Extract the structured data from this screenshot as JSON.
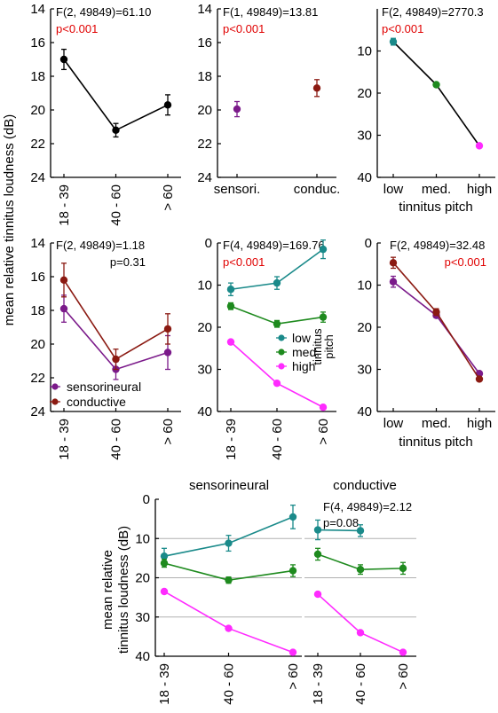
{
  "figure": {
    "ylabel_main": "mean relative tinnitus loudness (dB)",
    "ylabel_bottom_line1": "mean relative",
    "ylabel_bottom_line2": "tinnitus loudness (dB)",
    "pitch_xlabel": "tinnitus pitch",
    "colors": {
      "black": "#000000",
      "purple": "#7b1a8a",
      "darkred": "#8b1a12",
      "teal": "#1a8a8a",
      "green": "#1e8a1e",
      "magenta": "#ff2bff",
      "sig_red": "#e00000",
      "gridline": "#b0b0b0"
    }
  },
  "chart_data": [
    {
      "type": "line",
      "title": "",
      "stat": "F(2, 49849)=61.10",
      "pvalue": "p<0.001",
      "categories": [
        "18 - 39",
        "40 - 60",
        "> 60"
      ],
      "xlabel": "",
      "ylabel": "",
      "ylim": [
        14,
        24
      ],
      "yticks": [
        14,
        16,
        18,
        20,
        22,
        24
      ],
      "y_reversed": true,
      "series": [
        {
          "values": [
            17.0,
            21.2,
            19.7
          ],
          "err": [
            0.6,
            0.4,
            0.6
          ],
          "color": "#000000",
          "connect": true
        }
      ]
    },
    {
      "type": "scatter",
      "title": "",
      "stat": "F(1, 49849)=13.81",
      "pvalue": "p<0.001",
      "categories": [
        "sensori.",
        "conduc."
      ],
      "xlabel": "",
      "ylabel": "",
      "ylim": [
        14,
        24
      ],
      "yticks": [
        14,
        16,
        18,
        20,
        22,
        24
      ],
      "y_reversed": true,
      "series": [
        {
          "values": [
            19.95,
            null
          ],
          "err": [
            0.45,
            0
          ],
          "color": "#7b1a8a",
          "connect": false
        },
        {
          "values": [
            null,
            18.7
          ],
          "err": [
            0,
            0.5
          ],
          "color": "#8b1a12",
          "connect": false
        }
      ]
    },
    {
      "type": "line",
      "title": "",
      "stat": "F(2, 49849)=2770.3",
      "pvalue": "p<0.001",
      "categories": [
        "low",
        "med.",
        "high"
      ],
      "xlabel": "tinnitus pitch",
      "ylabel": "",
      "ylim": [
        0,
        40
      ],
      "yticks": [
        10,
        20,
        30,
        40
      ],
      "y_reversed": true,
      "segments": [
        {
          "from": 0,
          "to": 1,
          "color": "#000000"
        },
        {
          "from": 1,
          "to": 2,
          "color": "#000000"
        }
      ],
      "points": [
        {
          "x": 0,
          "y": 7.8,
          "err": 0.8,
          "color": "#1a8a8a"
        },
        {
          "x": 1,
          "y": 18.0,
          "err": 0.4,
          "color": "#1e8a1e"
        },
        {
          "x": 2,
          "y": 32.5,
          "err": 0.3,
          "color": "#ff2bff"
        }
      ]
    },
    {
      "type": "line",
      "title": "",
      "stat": "F(2, 49849)=1.18",
      "pvalue": "p=0.31",
      "categories": [
        "18 - 39",
        "40 - 60",
        "> 60"
      ],
      "xlabel": "",
      "ylabel": "",
      "ylim": [
        14,
        24
      ],
      "yticks": [
        14,
        16,
        18,
        20,
        22,
        24
      ],
      "y_reversed": true,
      "legend": "bottom-left",
      "series": [
        {
          "name": "sensorineural",
          "values": [
            17.9,
            21.5,
            20.5
          ],
          "err": [
            0.8,
            0.6,
            1.0
          ],
          "color": "#7b1a8a",
          "connect": true
        },
        {
          "name": "conductive",
          "values": [
            16.2,
            20.9,
            19.1
          ],
          "err": [
            1.0,
            0.6,
            0.9
          ],
          "color": "#8b1a12",
          "connect": true
        }
      ]
    },
    {
      "type": "line",
      "title": "",
      "stat": "F(4, 49849)=169.76",
      "pvalue": "p<0.001",
      "categories": [
        "18 - 39",
        "40 - 60",
        "> 60"
      ],
      "xlabel": "",
      "ylabel": "",
      "ylim": [
        0,
        40
      ],
      "yticks": [
        0,
        10,
        20,
        30,
        40
      ],
      "y_reversed": true,
      "legend": "center-right",
      "legend_title": "tinnitus pitch",
      "series": [
        {
          "name": "low",
          "values": [
            11.0,
            9.5,
            1.5
          ],
          "err": [
            1.5,
            1.5,
            2.2
          ],
          "color": "#1a8a8a",
          "connect": true
        },
        {
          "name": "med.",
          "values": [
            15.0,
            19.2,
            17.6
          ],
          "err": [
            0.8,
            0.8,
            1.2
          ],
          "color": "#1e8a1e",
          "connect": true
        },
        {
          "name": "high",
          "values": [
            23.5,
            33.3,
            39.0
          ],
          "err": [
            0.3,
            0.3,
            0.5
          ],
          "color": "#ff2bff",
          "connect": true
        }
      ]
    },
    {
      "type": "line",
      "title": "",
      "stat": "F(2, 49849)=32.48",
      "pvalue": "p<0.001",
      "categories": [
        "low",
        "med.",
        "high"
      ],
      "xlabel": "tinnitus pitch",
      "ylabel": "",
      "ylim": [
        0,
        40
      ],
      "yticks": [
        0,
        10,
        20,
        30,
        40
      ],
      "y_reversed": true,
      "series": [
        {
          "name": "sensorineural",
          "values": [
            9.2,
            17.2,
            31.0
          ],
          "err": [
            1.3,
            0.5,
            0.4
          ],
          "color": "#7b1a8a",
          "connect": true
        },
        {
          "name": "conductive",
          "values": [
            4.7,
            16.4,
            32.3
          ],
          "err": [
            1.3,
            0.8,
            0.4
          ],
          "color": "#8b1a12",
          "connect": true
        }
      ]
    },
    {
      "type": "line",
      "title": "sensorineural",
      "stat": "",
      "pvalue": "",
      "categories": [
        "18 - 39",
        "40 - 60",
        "> 60"
      ],
      "xlabel": "",
      "ylabel": "mean relative tinnitus loudness (dB)",
      "ylim": [
        0,
        40
      ],
      "yticks": [
        0,
        10,
        20,
        30,
        40
      ],
      "y_reversed": true,
      "grid": true,
      "series": [
        {
          "name": "low",
          "values": [
            14.5,
            11.2,
            4.5
          ],
          "err": [
            2.0,
            2.0,
            3.0
          ],
          "color": "#1a8a8a",
          "connect": true
        },
        {
          "name": "med.",
          "values": [
            16.3,
            20.6,
            18.2
          ],
          "err": [
            1.0,
            0.8,
            1.5
          ],
          "color": "#1e8a1e",
          "connect": true
        },
        {
          "name": "high",
          "values": [
            23.5,
            32.9,
            39.0
          ],
          "err": [
            0.4,
            0.4,
            0.5
          ],
          "color": "#ff2bff",
          "connect": true
        }
      ]
    },
    {
      "type": "line",
      "title": "conductive",
      "stat": "F(4, 49849)=2.12",
      "pvalue": "p=0.08",
      "categories": [
        "18 - 39",
        "40 - 60",
        "> 60"
      ],
      "xlabel": "",
      "ylabel": "",
      "ylim": [
        0,
        40
      ],
      "yticks": [],
      "y_reversed": true,
      "grid": true,
      "series": [
        {
          "name": "low",
          "values": [
            7.8,
            8.0,
            null
          ],
          "err": [
            2.5,
            1.5,
            0
          ],
          "color": "#1a8a8a",
          "connect": true
        },
        {
          "name": "med.",
          "values": [
            14.0,
            17.9,
            17.6
          ],
          "err": [
            1.5,
            1.2,
            1.5
          ],
          "color": "#1e8a1e",
          "connect": true
        },
        {
          "name": "high",
          "values": [
            24.2,
            34.0,
            39.0
          ],
          "err": [
            0.5,
            0.4,
            0.5
          ],
          "color": "#ff2bff",
          "connect": true
        }
      ]
    }
  ]
}
